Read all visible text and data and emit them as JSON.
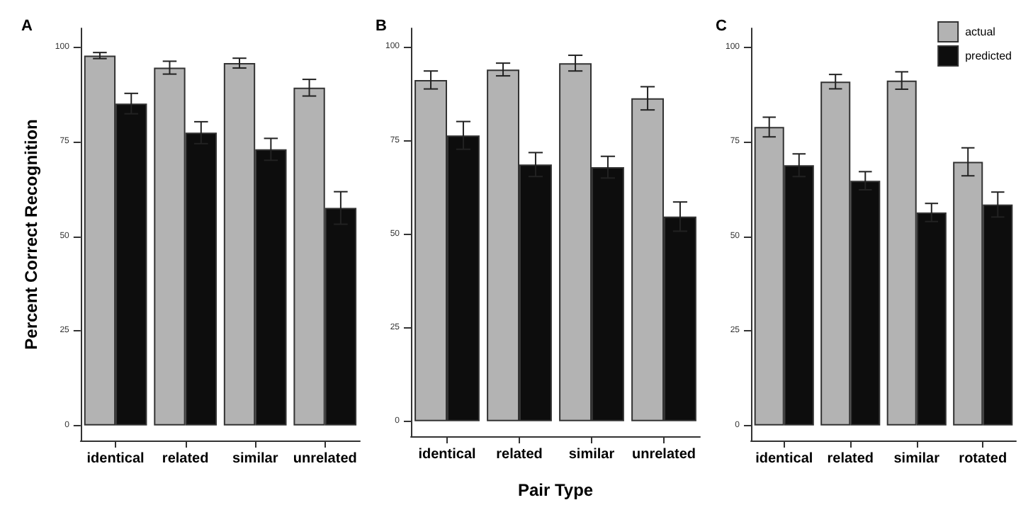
{
  "chart_data": [
    {
      "type": "bar",
      "title": "A",
      "ylabel": "Percent Correct Recognition",
      "categories": [
        "identical",
        "related",
        "similar",
        "unrelated"
      ],
      "series": [
        {
          "color": "#b3b3b3",
          "values": [
            97.8,
            94.6,
            95.8,
            89.3
          ],
          "errors": [
            0.8,
            1.7,
            1.3,
            2.2
          ]
        },
        {
          "color": "#0d0d0d",
          "values": [
            85.1,
            77.4,
            73,
            57.5
          ],
          "errors": [
            2.7,
            2.9,
            2.9,
            4.3
          ]
        }
      ],
      "ylim": [
        -4,
        105
      ],
      "yticks": [
        0,
        25,
        50,
        75,
        100
      ],
      "grid": false,
      "legend": false
    },
    {
      "type": "bar",
      "title": "B",
      "xlabel": "Pair Type",
      "categories": [
        "identical",
        "related",
        "similar",
        "unrelated"
      ],
      "series": [
        {
          "color": "#b3b3b3",
          "values": [
            91.2,
            94,
            95.7,
            86.3
          ],
          "errors": [
            2.4,
            1.7,
            2.1,
            3.1
          ]
        },
        {
          "color": "#0d0d0d",
          "values": [
            76.4,
            68.6,
            67.9,
            54.7
          ],
          "errors": [
            3.7,
            3.2,
            2.9,
            3.9
          ]
        }
      ],
      "ylim": [
        -4,
        105
      ],
      "yticks": [
        0,
        25,
        50,
        75,
        100
      ],
      "grid": false,
      "legend": false
    },
    {
      "type": "bar",
      "title": "C",
      "categories": [
        "identical",
        "related",
        "similar",
        "rotated"
      ],
      "series": [
        {
          "name": "actual",
          "color": "#b3b3b3",
          "values": [
            78.9,
            90.9,
            91.2,
            69.7
          ],
          "errors": [
            2.6,
            1.9,
            2.3,
            3.7
          ]
        },
        {
          "name": "predicted",
          "color": "#0d0d0d",
          "values": [
            68.8,
            64.7,
            56.3,
            58.4
          ],
          "errors": [
            3,
            2.4,
            2.4,
            3.3
          ]
        }
      ],
      "ylim": [
        -4,
        105
      ],
      "yticks": [
        0,
        25,
        50,
        75,
        100
      ],
      "grid": false,
      "legend": "top right"
    }
  ]
}
